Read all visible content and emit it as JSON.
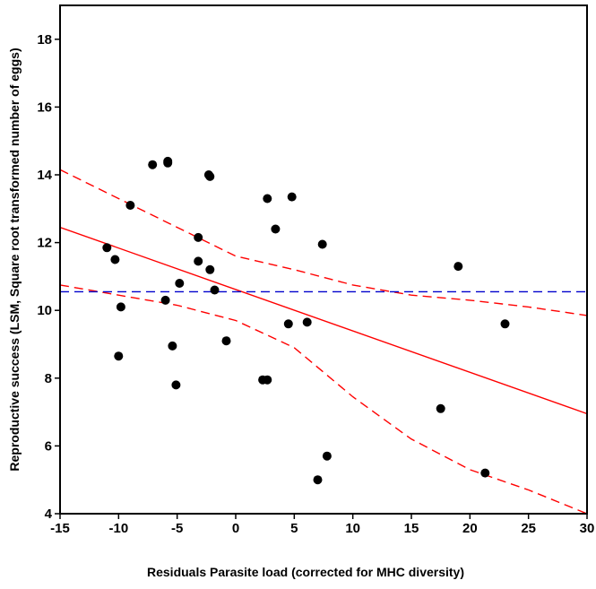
{
  "chart_data": {
    "type": "scatter",
    "xlabel": "Residuals Parasite load (corrected for MHC diversity)",
    "ylabel": "Reproductive success (LSM, Square root transformed number of eggs)",
    "xlim": [
      -15,
      30
    ],
    "ylim": [
      4,
      19
    ],
    "xticks": [
      -15,
      -10,
      -5,
      0,
      5,
      10,
      15,
      20,
      25,
      30
    ],
    "yticks": [
      4,
      6,
      8,
      10,
      12,
      14,
      16,
      18
    ],
    "grid": false,
    "points": [
      {
        "x": -11.0,
        "y": 11.85
      },
      {
        "x": -10.3,
        "y": 11.5
      },
      {
        "x": -10.0,
        "y": 8.65
      },
      {
        "x": -9.8,
        "y": 10.1
      },
      {
        "x": -9.0,
        "y": 13.1
      },
      {
        "x": -7.1,
        "y": 14.3
      },
      {
        "x": -6.0,
        "y": 10.3
      },
      {
        "x": -5.8,
        "y": 14.4
      },
      {
        "x": -5.8,
        "y": 14.35
      },
      {
        "x": -5.4,
        "y": 8.95
      },
      {
        "x": -5.1,
        "y": 7.8
      },
      {
        "x": -4.8,
        "y": 10.8
      },
      {
        "x": -3.2,
        "y": 12.15
      },
      {
        "x": -3.2,
        "y": 11.45
      },
      {
        "x": -2.3,
        "y": 14.0
      },
      {
        "x": -2.2,
        "y": 13.95
      },
      {
        "x": -2.2,
        "y": 11.2
      },
      {
        "x": -1.8,
        "y": 10.6
      },
      {
        "x": -0.8,
        "y": 9.1
      },
      {
        "x": 2.3,
        "y": 7.95
      },
      {
        "x": 2.7,
        "y": 7.95
      },
      {
        "x": 2.7,
        "y": 13.3
      },
      {
        "x": 3.4,
        "y": 12.4
      },
      {
        "x": 4.5,
        "y": 9.6
      },
      {
        "x": 4.8,
        "y": 13.35
      },
      {
        "x": 6.1,
        "y": 9.65
      },
      {
        "x": 7.0,
        "y": 5.0
      },
      {
        "x": 7.4,
        "y": 11.95
      },
      {
        "x": 7.8,
        "y": 5.7
      },
      {
        "x": 17.5,
        "y": 7.1
      },
      {
        "x": 19.0,
        "y": 11.3
      },
      {
        "x": 21.3,
        "y": 5.2
      },
      {
        "x": 23.0,
        "y": 9.6
      }
    ],
    "lines": [
      {
        "style": "solid",
        "color": "#ff0000",
        "points": [
          [
            -15,
            12.45
          ],
          [
            30,
            6.95
          ]
        ]
      },
      {
        "style": "dashed",
        "color": "#ff0000",
        "points": [
          [
            -15,
            14.15
          ],
          [
            -10,
            13.3
          ],
          [
            -5,
            12.45
          ],
          [
            0,
            11.6
          ],
          [
            5,
            11.2
          ],
          [
            10,
            10.75
          ],
          [
            15,
            10.45
          ],
          [
            20,
            10.3
          ],
          [
            25,
            10.1
          ],
          [
            30,
            9.85
          ]
        ]
      },
      {
        "style": "dashed",
        "color": "#ff0000",
        "points": [
          [
            -15,
            10.75
          ],
          [
            -10,
            10.45
          ],
          [
            -5,
            10.15
          ],
          [
            0,
            9.7
          ],
          [
            5,
            8.9
          ],
          [
            10,
            7.45
          ],
          [
            15,
            6.2
          ],
          [
            20,
            5.3
          ],
          [
            25,
            4.7
          ],
          [
            30,
            4.0
          ]
        ]
      },
      {
        "style": "dashed",
        "color": "#0000cc",
        "points": [
          [
            -15,
            10.55
          ],
          [
            30,
            10.55
          ]
        ]
      }
    ]
  }
}
